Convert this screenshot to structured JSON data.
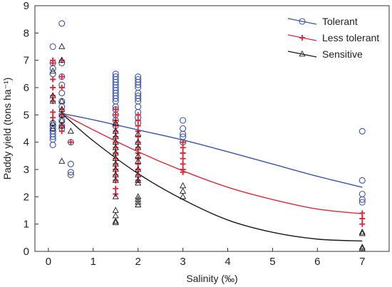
{
  "chart_data": {
    "type": "scatter",
    "xlabel": "Salinity (‰)",
    "ylabel": "Paddy yield (tons ha⁻¹)",
    "xlim": [
      -0.3,
      7.6
    ],
    "ylim": [
      0,
      9
    ],
    "xticks": [
      0,
      1,
      2,
      3,
      4,
      5,
      6,
      7
    ],
    "yticks": [
      0,
      1,
      2,
      3,
      4,
      5,
      6,
      7,
      8,
      9
    ],
    "legend_position": "top-right",
    "series": [
      {
        "name": "Tolerant",
        "color": "#3a55a8",
        "marker": "circle",
        "points": [
          [
            0.1,
            7.5
          ],
          [
            0.1,
            6.9
          ],
          [
            0.1,
            6.7
          ],
          [
            0.1,
            6.5
          ],
          [
            0.1,
            4.7
          ],
          [
            0.1,
            4.6
          ],
          [
            0.1,
            4.5
          ],
          [
            0.1,
            4.4
          ],
          [
            0.1,
            4.3
          ],
          [
            0.1,
            4.2
          ],
          [
            0.1,
            4.1
          ],
          [
            0.1,
            3.9
          ],
          [
            0.3,
            8.35
          ],
          [
            0.3,
            6.9
          ],
          [
            0.3,
            6.4
          ],
          [
            0.3,
            6.1
          ],
          [
            0.3,
            5.8
          ],
          [
            0.3,
            5.5
          ],
          [
            0.3,
            5.3
          ],
          [
            0.3,
            5.0
          ],
          [
            0.3,
            4.8
          ],
          [
            0.3,
            4.6
          ],
          [
            0.3,
            4.5
          ],
          [
            0.5,
            3.2
          ],
          [
            0.5,
            2.9
          ],
          [
            0.5,
            2.8
          ],
          [
            0.5,
            4.0
          ],
          [
            1.5,
            6.5
          ],
          [
            1.5,
            6.4
          ],
          [
            1.5,
            6.3
          ],
          [
            1.5,
            6.2
          ],
          [
            1.5,
            6.1
          ],
          [
            1.5,
            6.0
          ],
          [
            1.5,
            5.9
          ],
          [
            1.5,
            5.8
          ],
          [
            1.5,
            5.7
          ],
          [
            1.5,
            5.6
          ],
          [
            1.5,
            5.5
          ],
          [
            1.5,
            5.3
          ],
          [
            1.5,
            5.2
          ],
          [
            1.5,
            5.0
          ],
          [
            1.5,
            4.8
          ],
          [
            1.5,
            4.6
          ],
          [
            2.0,
            6.4
          ],
          [
            2.0,
            6.3
          ],
          [
            2.0,
            6.2
          ],
          [
            2.0,
            6.1
          ],
          [
            2.0,
            6.0
          ],
          [
            2.0,
            5.8
          ],
          [
            2.0,
            5.7
          ],
          [
            2.0,
            5.6
          ],
          [
            2.0,
            5.5
          ],
          [
            2.0,
            5.3
          ],
          [
            2.0,
            5.1
          ],
          [
            2.0,
            4.9
          ],
          [
            2.0,
            4.7
          ],
          [
            3.0,
            4.8
          ],
          [
            3.0,
            4.5
          ],
          [
            3.0,
            4.3
          ],
          [
            3.0,
            4.2
          ],
          [
            3.0,
            4.0
          ],
          [
            7.0,
            4.4
          ],
          [
            7.0,
            2.6
          ],
          [
            7.0,
            2.1
          ],
          [
            7.0,
            1.9
          ],
          [
            7.0,
            1.8
          ]
        ]
      },
      {
        "name": "Less tolerant",
        "color": "#d92b3a",
        "marker": "plus",
        "points": [
          [
            0.1,
            7.0
          ],
          [
            0.1,
            6.9
          ],
          [
            0.1,
            6.3
          ],
          [
            0.1,
            6.0
          ],
          [
            0.1,
            5.7
          ],
          [
            0.1,
            5.5
          ],
          [
            0.1,
            5.1
          ],
          [
            0.1,
            4.9
          ],
          [
            0.3,
            7.0
          ],
          [
            0.3,
            6.4
          ],
          [
            0.3,
            6.0
          ],
          [
            0.3,
            5.2
          ],
          [
            0.3,
            5.0
          ],
          [
            0.3,
            4.6
          ],
          [
            0.3,
            4.4
          ],
          [
            0.5,
            4.0
          ],
          [
            1.5,
            5.2
          ],
          [
            1.5,
            5.0
          ],
          [
            1.5,
            4.8
          ],
          [
            1.5,
            4.6
          ],
          [
            1.5,
            4.4
          ],
          [
            1.5,
            4.2
          ],
          [
            1.5,
            4.0
          ],
          [
            1.5,
            3.8
          ],
          [
            1.5,
            3.6
          ],
          [
            1.5,
            3.4
          ],
          [
            1.5,
            3.2
          ],
          [
            1.5,
            3.0
          ],
          [
            1.5,
            2.8
          ],
          [
            1.5,
            2.6
          ],
          [
            1.5,
            2.3
          ],
          [
            1.5,
            2.1
          ],
          [
            2.0,
            5.0
          ],
          [
            2.0,
            4.8
          ],
          [
            2.0,
            4.6
          ],
          [
            2.0,
            4.4
          ],
          [
            2.0,
            4.2
          ],
          [
            2.0,
            4.0
          ],
          [
            2.0,
            3.8
          ],
          [
            2.0,
            3.6
          ],
          [
            2.0,
            3.4
          ],
          [
            2.0,
            3.2
          ],
          [
            2.0,
            3.0
          ],
          [
            2.0,
            2.8
          ],
          [
            2.0,
            2.6
          ],
          [
            3.0,
            4.0
          ],
          [
            3.0,
            3.8
          ],
          [
            3.0,
            3.6
          ],
          [
            3.0,
            3.4
          ],
          [
            3.0,
            3.2
          ],
          [
            3.0,
            3.0
          ],
          [
            3.0,
            2.9
          ],
          [
            7.0,
            1.4
          ],
          [
            7.0,
            1.2
          ],
          [
            7.0,
            1.0
          ]
        ]
      },
      {
        "name": "Sensitive",
        "color": "#1a1a1a",
        "marker": "triangle",
        "points": [
          [
            0.1,
            6.6
          ],
          [
            0.1,
            5.7
          ],
          [
            0.1,
            5.5
          ],
          [
            0.1,
            4.7
          ],
          [
            0.1,
            4.5
          ],
          [
            0.3,
            7.5
          ],
          [
            0.3,
            7.0
          ],
          [
            0.3,
            5.5
          ],
          [
            0.3,
            5.2
          ],
          [
            0.3,
            5.0
          ],
          [
            0.3,
            4.8
          ],
          [
            0.3,
            4.6
          ],
          [
            0.3,
            3.3
          ],
          [
            0.5,
            4.4
          ],
          [
            1.5,
            4.7
          ],
          [
            1.5,
            4.4
          ],
          [
            1.5,
            4.2
          ],
          [
            1.5,
            4.0
          ],
          [
            1.5,
            3.8
          ],
          [
            1.5,
            3.6
          ],
          [
            1.5,
            3.4
          ],
          [
            1.5,
            3.2
          ],
          [
            1.5,
            3.0
          ],
          [
            1.5,
            2.8
          ],
          [
            1.5,
            2.6
          ],
          [
            1.5,
            2.0
          ],
          [
            1.5,
            1.5
          ],
          [
            1.5,
            1.3
          ],
          [
            1.5,
            1.1
          ],
          [
            1.5,
            1.05
          ],
          [
            2.0,
            4.3
          ],
          [
            2.0,
            4.0
          ],
          [
            2.0,
            3.8
          ],
          [
            2.0,
            3.5
          ],
          [
            2.0,
            3.3
          ],
          [
            2.0,
            3.0
          ],
          [
            2.0,
            2.8
          ],
          [
            2.0,
            2.6
          ],
          [
            2.0,
            2.5
          ],
          [
            2.0,
            2.0
          ],
          [
            2.0,
            1.9
          ],
          [
            2.0,
            1.8
          ],
          [
            2.0,
            1.7
          ],
          [
            3.0,
            2.4
          ],
          [
            3.0,
            2.2
          ],
          [
            3.0,
            2.0
          ],
          [
            7.0,
            0.7
          ],
          [
            7.0,
            0.65
          ],
          [
            7.0,
            0.15
          ],
          [
            7.0,
            0.1
          ]
        ]
      }
    ],
    "fit_curves": [
      {
        "name": "Tolerant",
        "color": "#3a55a8",
        "x": [
          0.3,
          1,
          2,
          3,
          4,
          5,
          6,
          7
        ],
        "y": [
          5.05,
          4.82,
          4.45,
          4.08,
          3.65,
          3.2,
          2.75,
          2.35
        ]
      },
      {
        "name": "Less tolerant",
        "color": "#d92b3a",
        "x": [
          0.3,
          1,
          2,
          3,
          4,
          5,
          6,
          7
        ],
        "y": [
          5.05,
          4.45,
          3.65,
          2.95,
          2.35,
          1.9,
          1.55,
          1.38
        ]
      },
      {
        "name": "Sensitive",
        "color": "#1a1a1a",
        "x": [
          0.3,
          1,
          2,
          3,
          4,
          5,
          6,
          7
        ],
        "y": [
          5.05,
          4.05,
          2.85,
          1.9,
          1.15,
          0.7,
          0.45,
          0.38
        ]
      }
    ]
  }
}
